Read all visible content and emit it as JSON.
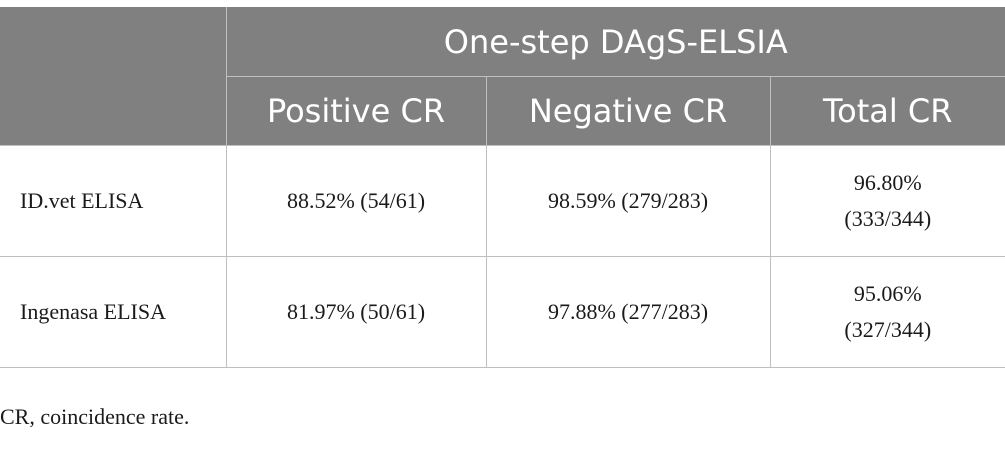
{
  "table": {
    "group_header": "One-step DAgS-ELSIA",
    "columns": [
      "Positive CR",
      "Negative CR",
      "Total CR"
    ],
    "rows": [
      {
        "label": "ID.vet ELISA",
        "positive": "88.52% (54/61)",
        "negative": "98.59% (279/283)",
        "total": "96.80% (333/344)"
      },
      {
        "label": "Ingenasa ELISA",
        "positive": "81.97% (50/61)",
        "negative": "97.88% (277/283)",
        "total": "95.06% (327/344)"
      }
    ]
  },
  "footnote": "CR, coincidence rate."
}
